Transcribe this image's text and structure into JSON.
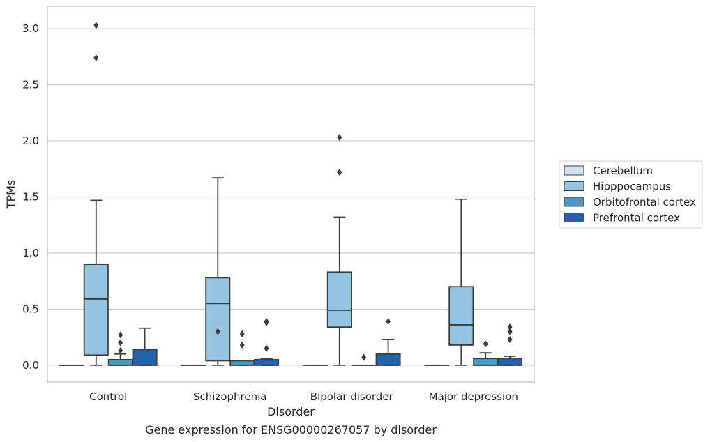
{
  "chart_data": {
    "type": "box",
    "title": "",
    "caption": "Gene expression for ENSG00000267057 by disorder",
    "xlabel": "Disorder",
    "ylabel": "TPMs",
    "categories": [
      "Control",
      "Schizophrenia",
      "Bipolar disorder",
      "Major depression"
    ],
    "ylim": [
      -0.15,
      3.2
    ],
    "yticks": [
      "0.0",
      "0.5",
      "1.0",
      "1.5",
      "2.0",
      "2.5",
      "3.0"
    ],
    "grid": true,
    "legend_position": "right",
    "series": [
      {
        "name": "Cerebellum",
        "color": "#d0e1f2",
        "boxes": [
          {
            "q1": 0,
            "median": 0,
            "q3": 0,
            "whisker_low": 0,
            "whisker_high": 0,
            "outliers": []
          },
          {
            "q1": 0,
            "median": 0,
            "q3": 0,
            "whisker_low": 0,
            "whisker_high": 0,
            "outliers": []
          },
          {
            "q1": 0,
            "median": 0,
            "q3": 0,
            "whisker_low": 0,
            "whisker_high": 0,
            "outliers": []
          },
          {
            "q1": 0,
            "median": 0,
            "q3": 0,
            "whisker_low": 0,
            "whisker_high": 0,
            "outliers": []
          }
        ]
      },
      {
        "name": "Hipppocampus",
        "color": "#94c4df",
        "boxes": [
          {
            "q1": 0.09,
            "median": 0.59,
            "q3": 0.9,
            "whisker_low": 0,
            "whisker_high": 1.47,
            "outliers": [
              2.74,
              3.03
            ]
          },
          {
            "q1": 0.04,
            "median": 0.55,
            "q3": 0.78,
            "whisker_low": 0,
            "whisker_high": 1.67,
            "outliers": [
              0.3
            ]
          },
          {
            "q1": 0.34,
            "median": 0.49,
            "q3": 0.83,
            "whisker_low": 0,
            "whisker_high": 1.32,
            "outliers": [
              1.72,
              2.03
            ]
          },
          {
            "q1": 0.18,
            "median": 0.36,
            "q3": 0.7,
            "whisker_low": 0,
            "whisker_high": 1.48,
            "outliers": []
          }
        ]
      },
      {
        "name": "Orbitofrontal cortex",
        "color": "#4a98c9",
        "boxes": [
          {
            "q1": 0,
            "median": 0,
            "q3": 0.05,
            "whisker_low": 0,
            "whisker_high": 0.1,
            "outliers": [
              0.13,
              0.2,
              0.27
            ]
          },
          {
            "q1": 0,
            "median": 0,
            "q3": 0.04,
            "whisker_low": 0,
            "whisker_high": 0.04,
            "outliers": [
              0.18,
              0.28
            ]
          },
          {
            "q1": 0,
            "median": 0,
            "q3": 0,
            "whisker_low": 0,
            "whisker_high": 0,
            "outliers": [
              0.07
            ]
          },
          {
            "q1": 0,
            "median": 0,
            "q3": 0.06,
            "whisker_low": 0,
            "whisker_high": 0.11,
            "outliers": [
              0.19
            ]
          }
        ]
      },
      {
        "name": "Prefrontal cortex",
        "color": "#2164ab",
        "boxes": [
          {
            "q1": 0,
            "median": 0,
            "q3": 0.14,
            "whisker_low": 0,
            "whisker_high": 0.33,
            "outliers": []
          },
          {
            "q1": 0,
            "median": 0,
            "q3": 0.05,
            "whisker_low": 0,
            "whisker_high": 0.06,
            "outliers": [
              0.15,
              0.38,
              0.39
            ]
          },
          {
            "q1": 0,
            "median": 0,
            "q3": 0.1,
            "whisker_low": 0,
            "whisker_high": 0.23,
            "outliers": [
              0.39
            ]
          },
          {
            "q1": 0,
            "median": 0,
            "q3": 0.06,
            "whisker_low": 0,
            "whisker_high": 0.08,
            "outliers": [
              0.23,
              0.3,
              0.34
            ]
          }
        ]
      }
    ]
  }
}
